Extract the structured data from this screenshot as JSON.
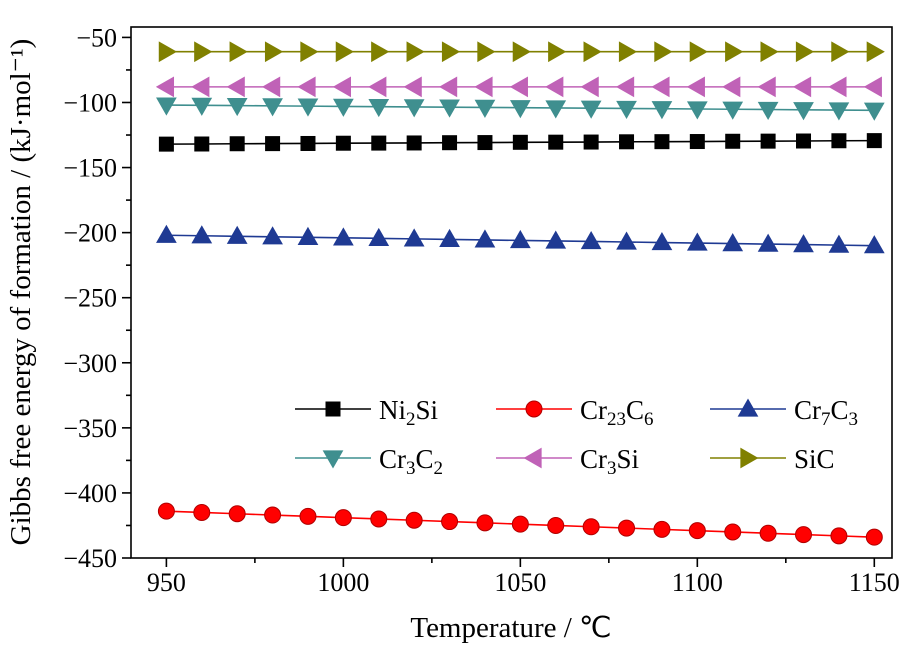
{
  "chart_data": {
    "type": "line",
    "xlabel": "Temperature / ℃",
    "ylabel": "Gibbs free energy of formation / (kJ·mol⁻¹)",
    "xlim": [
      940,
      1155
    ],
    "ylim": [
      -450,
      -42
    ],
    "xticks": [
      950,
      1000,
      1050,
      1100,
      1150
    ],
    "yticks": [
      -50,
      -100,
      -150,
      -200,
      -250,
      -300,
      -350,
      -400,
      -450
    ],
    "xtick_labels": [
      "950",
      "1000",
      "1050",
      "1100",
      "1150"
    ],
    "ytick_labels": [
      "−50",
      "−100",
      "−150",
      "−200",
      "−250",
      "−300",
      "−350",
      "−400",
      "−450"
    ],
    "x": [
      950,
      960,
      970,
      980,
      990,
      1000,
      1010,
      1020,
      1030,
      1040,
      1050,
      1060,
      1070,
      1080,
      1090,
      1100,
      1110,
      1120,
      1130,
      1140,
      1150
    ],
    "legend_position": "lower-middle",
    "grid": false,
    "series": [
      {
        "name": "Ni₂Si",
        "label_base": "Ni",
        "label_sub1": "2",
        "label_mid": "Si",
        "label_sub2": "",
        "color": "#000000",
        "marker": "square",
        "values": [
          -132.0,
          -131.9,
          -131.7,
          -131.6,
          -131.5,
          -131.3,
          -131.2,
          -131.1,
          -130.9,
          -130.8,
          -130.6,
          -130.5,
          -130.4,
          -130.2,
          -130.1,
          -130.0,
          -129.8,
          -129.7,
          -129.6,
          -129.4,
          -129.3
        ]
      },
      {
        "name": "Cr₂₃C₆",
        "label_base": "Cr",
        "label_sub1": "23",
        "label_mid": "C",
        "label_sub2": "6",
        "color": "#ff0000",
        "marker": "circle",
        "values": [
          -414.0,
          -415.0,
          -416.0,
          -417.0,
          -418.0,
          -419.0,
          -420.0,
          -421.0,
          -422.0,
          -423.0,
          -424.0,
          -425.0,
          -426.0,
          -427.0,
          -428.0,
          -429.0,
          -430.0,
          -431.0,
          -432.0,
          -433.0,
          -434.0
        ]
      },
      {
        "name": "Cr₇C₃",
        "label_base": "Cr",
        "label_sub1": "7",
        "label_mid": "C",
        "label_sub2": "3",
        "color": "#1f3a93",
        "marker": "triangle-up",
        "values": [
          -202.0,
          -202.4,
          -202.8,
          -203.2,
          -203.6,
          -204.0,
          -204.4,
          -204.8,
          -205.2,
          -205.6,
          -206.0,
          -206.4,
          -206.8,
          -207.2,
          -207.6,
          -208.0,
          -208.4,
          -208.8,
          -209.2,
          -209.6,
          -210.0
        ]
      },
      {
        "name": "Cr₃C₂",
        "label_base": "Cr",
        "label_sub1": "3",
        "label_mid": "C",
        "label_sub2": "2",
        "color": "#3f8f8f",
        "marker": "triangle-down",
        "values": [
          -102.0,
          -102.2,
          -102.4,
          -102.6,
          -102.8,
          -103.0,
          -103.2,
          -103.4,
          -103.6,
          -103.8,
          -104.0,
          -104.2,
          -104.4,
          -104.6,
          -104.8,
          -105.0,
          -105.2,
          -105.4,
          -105.6,
          -105.8,
          -106.0
        ]
      },
      {
        "name": "Cr₃Si",
        "label_base": "Cr",
        "label_sub1": "3",
        "label_mid": "Si",
        "label_sub2": "",
        "color": "#c062b7",
        "marker": "triangle-left",
        "values": [
          -88.0,
          -88.0,
          -88.0,
          -88.0,
          -88.0,
          -88.0,
          -88.0,
          -88.0,
          -88.0,
          -88.0,
          -88.0,
          -88.0,
          -88.0,
          -88.0,
          -88.0,
          -88.0,
          -88.0,
          -88.0,
          -88.0,
          -88.0,
          -88.0
        ]
      },
      {
        "name": "SiC",
        "label_base": "SiC",
        "label_sub1": "",
        "label_mid": "",
        "label_sub2": "",
        "color": "#808000",
        "marker": "triangle-right",
        "values": [
          -61.0,
          -61.0,
          -61.0,
          -61.0,
          -61.0,
          -61.0,
          -61.0,
          -61.0,
          -61.0,
          -61.0,
          -61.0,
          -61.0,
          -61.0,
          -61.0,
          -61.0,
          -61.0,
          -61.0,
          -61.0,
          -61.0,
          -61.0,
          -61.0
        ]
      }
    ]
  }
}
